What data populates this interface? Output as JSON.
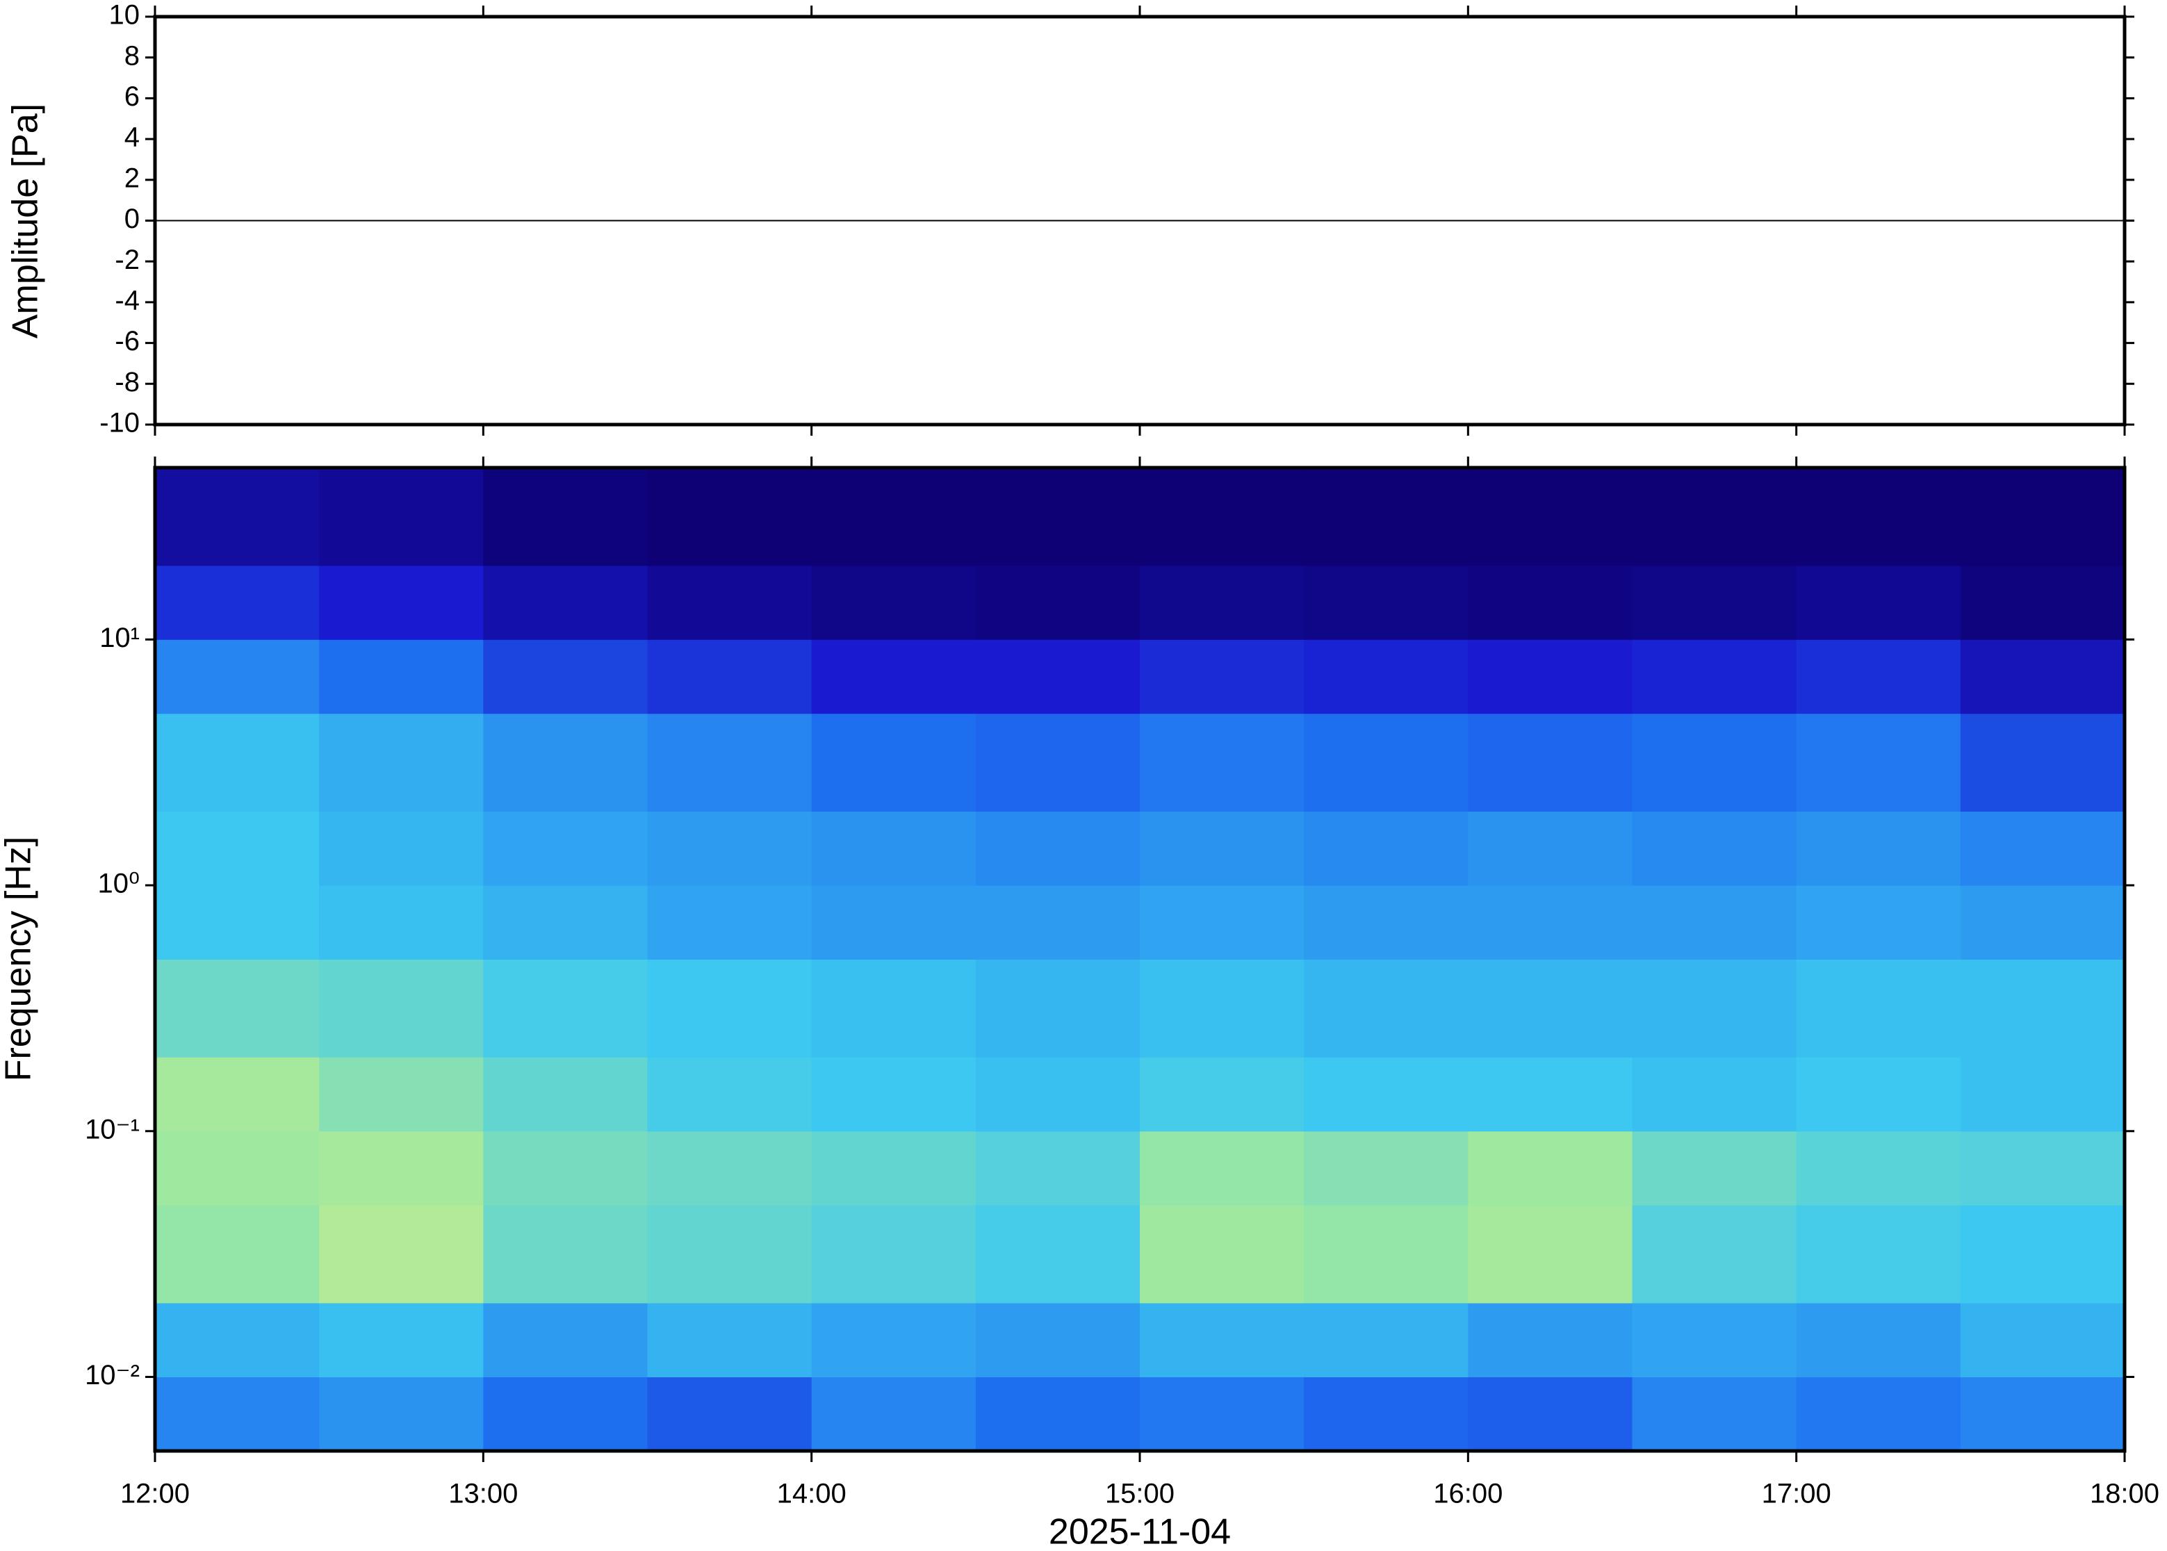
{
  "chart_data": [
    {
      "type": "line",
      "ylabel": "Amplitude [Pa]",
      "x": [
        12,
        13,
        14,
        15,
        16,
        17,
        18
      ],
      "series": [
        {
          "name": "Amplitude",
          "color": "#000000",
          "values": [
            0,
            0,
            0,
            0,
            0,
            0,
            0
          ]
        }
      ],
      "xlim": [
        12,
        18
      ],
      "xticks": [
        12,
        13,
        14,
        15,
        16,
        17,
        18
      ],
      "ylim": [
        -10,
        10
      ],
      "yticks": [
        -10,
        -8,
        -6,
        -4,
        -2,
        0,
        2,
        4,
        6,
        8,
        10
      ]
    },
    {
      "type": "heatmap",
      "ylabel": "Frequency [Hz]",
      "xlabel": "2025-11-04",
      "log_y": true,
      "x_bins": [
        12,
        12.5,
        13,
        13.5,
        14,
        14.5,
        15,
        15.5,
        16,
        16.5,
        17,
        17.5,
        18
      ],
      "y_bins": [
        0.005,
        0.01,
        0.02,
        0.05,
        0.1,
        0.2,
        0.5,
        1,
        2,
        5,
        10,
        20,
        50
      ],
      "zlim": [
        0,
        1
      ],
      "colors": [
        "#0c0070",
        "#1a1ad0",
        "#1e6ff0",
        "#3cc8f0",
        "#9ee8a0",
        "#f0f07a"
      ],
      "values": [
        [
          0.45,
          0.48,
          0.4,
          0.35,
          0.45,
          0.4,
          0.42,
          0.38,
          0.36,
          0.45,
          0.42,
          0.45
        ],
        [
          0.55,
          0.58,
          0.5,
          0.55,
          0.52,
          0.5,
          0.55,
          0.55,
          0.5,
          0.52,
          0.5,
          0.55
        ],
        [
          0.78,
          0.85,
          0.7,
          0.68,
          0.65,
          0.62,
          0.8,
          0.78,
          0.82,
          0.65,
          0.62,
          0.6
        ],
        [
          0.8,
          0.82,
          0.72,
          0.7,
          0.68,
          0.65,
          0.78,
          0.75,
          0.8,
          0.7,
          0.66,
          0.65
        ],
        [
          0.82,
          0.75,
          0.68,
          0.62,
          0.6,
          0.58,
          0.62,
          0.6,
          0.6,
          0.58,
          0.6,
          0.58
        ],
        [
          0.7,
          0.68,
          0.62,
          0.6,
          0.58,
          0.56,
          0.58,
          0.56,
          0.56,
          0.56,
          0.58,
          0.58
        ],
        [
          0.6,
          0.58,
          0.55,
          0.52,
          0.5,
          0.5,
          0.52,
          0.5,
          0.5,
          0.5,
          0.52,
          0.5
        ],
        [
          0.6,
          0.56,
          0.52,
          0.5,
          0.48,
          0.46,
          0.48,
          0.46,
          0.48,
          0.46,
          0.48,
          0.45
        ],
        [
          0.58,
          0.54,
          0.48,
          0.45,
          0.4,
          0.38,
          0.42,
          0.4,
          0.38,
          0.4,
          0.42,
          0.32
        ],
        [
          0.45,
          0.4,
          0.3,
          0.26,
          0.2,
          0.2,
          0.24,
          0.22,
          0.2,
          0.22,
          0.25,
          0.15
        ],
        [
          0.25,
          0.2,
          0.12,
          0.08,
          0.05,
          0.04,
          0.06,
          0.05,
          0.04,
          0.05,
          0.07,
          0.03
        ],
        [
          0.1,
          0.08,
          0.02,
          0.01,
          0.01,
          0.01,
          0.01,
          0.01,
          0.01,
          0.01,
          0.01,
          0.01
        ]
      ],
      "xlim": [
        12,
        18
      ],
      "xticks": [
        {
          "value": 12,
          "label": "12:00"
        },
        {
          "value": 13,
          "label": "13:00"
        },
        {
          "value": 14,
          "label": "14:00"
        },
        {
          "value": 15,
          "label": "15:00"
        },
        {
          "value": 16,
          "label": "16:00"
        },
        {
          "value": 17,
          "label": "17:00"
        },
        {
          "value": 18,
          "label": "18:00"
        }
      ],
      "ylim": [
        0.005,
        50
      ],
      "yticks": [
        {
          "value": 0.01,
          "label": "10⁻²"
        },
        {
          "value": 0.1,
          "label": "10⁻¹"
        },
        {
          "value": 1,
          "label": "10⁰"
        },
        {
          "value": 10,
          "label": "10¹"
        }
      ]
    }
  ]
}
